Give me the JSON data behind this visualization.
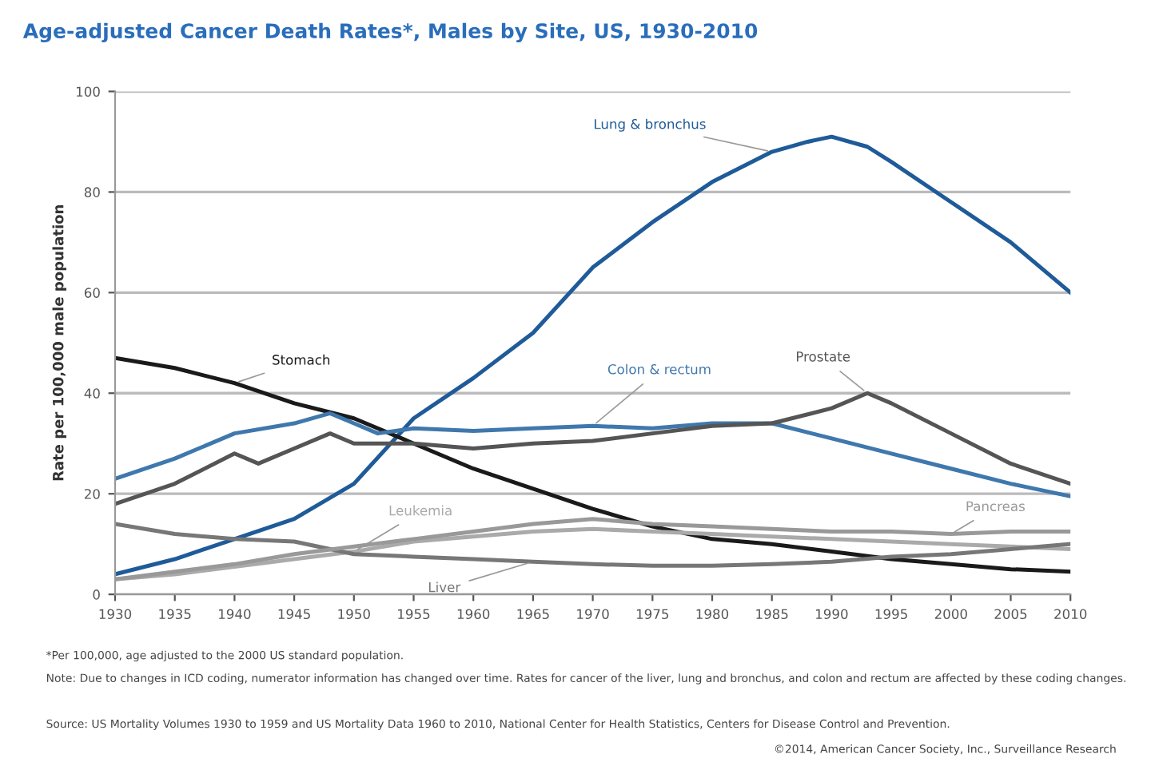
{
  "chart_data": {
    "type": "line",
    "title": "Age-adjusted Cancer Death Rates*, Males by Site, US, 1930-2010",
    "ylabel": "Rate per 100,000 male population",
    "xlim": [
      1930,
      2010
    ],
    "xticks": [
      1930,
      1935,
      1940,
      1945,
      1950,
      1955,
      1960,
      1965,
      1970,
      1975,
      1980,
      1985,
      1990,
      1995,
      2000,
      2005,
      2010
    ],
    "ylim": [
      0,
      100
    ],
    "yticks": [
      0,
      20,
      40,
      60,
      80,
      100
    ],
    "grid": "y",
    "legend": false,
    "marker": "none",
    "line_style": "solid",
    "series": [
      {
        "name": "Lung & bronchus",
        "color": "#1f5b99",
        "x": [
          1930,
          1935,
          1940,
          1945,
          1950,
          1955,
          1960,
          1965,
          1970,
          1975,
          1980,
          1985,
          1988,
          1990,
          1993,
          1995,
          2000,
          2005,
          2010
        ],
        "values": [
          4,
          7,
          11,
          15,
          22,
          35,
          43,
          52,
          65,
          74,
          82,
          88,
          90,
          91,
          89,
          86,
          78,
          70,
          60
        ]
      },
      {
        "name": "Stomach",
        "color": "#1a1a1a",
        "x": [
          1930,
          1935,
          1940,
          1945,
          1950,
          1955,
          1960,
          1965,
          1970,
          1975,
          1980,
          1985,
          1990,
          1995,
          2000,
          2005,
          2010
        ],
        "values": [
          47,
          45,
          42,
          38,
          35,
          30,
          25,
          21,
          17,
          13.5,
          11,
          10,
          8.5,
          7,
          6,
          5,
          4.5
        ]
      },
      {
        "name": "Colon & rectum",
        "color": "#3f78ad",
        "x": [
          1930,
          1935,
          1940,
          1945,
          1948,
          1950,
          1952,
          1955,
          1960,
          1965,
          1970,
          1975,
          1980,
          1985,
          1990,
          1995,
          2000,
          2005,
          2010
        ],
        "values": [
          23,
          27,
          32,
          34,
          36,
          34,
          32,
          33,
          32.5,
          33,
          33.5,
          33,
          34,
          34,
          31,
          28,
          25,
          22,
          19.5
        ]
      },
      {
        "name": "Prostate",
        "color": "#555555",
        "x": [
          1930,
          1935,
          1940,
          1942,
          1945,
          1948,
          1950,
          1955,
          1960,
          1965,
          1970,
          1975,
          1980,
          1985,
          1990,
          1993,
          1995,
          2000,
          2005,
          2010
        ],
        "values": [
          18,
          22,
          28,
          26,
          29,
          32,
          30,
          30,
          29,
          30,
          30.5,
          32,
          33.5,
          34,
          37,
          40,
          38,
          32,
          26,
          22
        ]
      },
      {
        "name": "Leukemia",
        "color": "#aaaaaa",
        "x": [
          1930,
          1935,
          1940,
          1945,
          1950,
          1955,
          1960,
          1965,
          1970,
          1975,
          1980,
          1985,
          1990,
          1995,
          2000,
          2005,
          2010
        ],
        "values": [
          3,
          4,
          5.5,
          7,
          8.5,
          10.5,
          11.5,
          12.5,
          13,
          12.5,
          12,
          11.5,
          11,
          10.5,
          10,
          9.5,
          9
        ]
      },
      {
        "name": "Liver",
        "color": "#777777",
        "x": [
          1930,
          1935,
          1940,
          1945,
          1950,
          1955,
          1960,
          1965,
          1970,
          1975,
          1980,
          1985,
          1990,
          1995,
          2000,
          2005,
          2010
        ],
        "values": [
          14,
          12,
          11,
          10.5,
          8,
          7.5,
          7,
          6.5,
          6,
          5.7,
          5.7,
          6,
          6.5,
          7.5,
          8,
          9,
          10
        ]
      },
      {
        "name": "Pancreas",
        "color": "#999999",
        "x": [
          1930,
          1935,
          1940,
          1945,
          1950,
          1955,
          1960,
          1965,
          1970,
          1975,
          1980,
          1985,
          1990,
          1995,
          2000,
          2005,
          2010
        ],
        "values": [
          3,
          4.5,
          6,
          8,
          9.5,
          11,
          12.5,
          14,
          15,
          14,
          13.5,
          13,
          12.5,
          12.5,
          12,
          12.5,
          12.5
        ]
      }
    ],
    "annotations": [
      "*Per 100,000, age adjusted to the 2000 US standard population.",
      "Note: Due to changes in ICD coding, numerator information has changed over time. Rates for cancer of the liver, lung and bronchus, and colon and rectum are affected by these coding changes.",
      "Source: US Mortality Volumes 1930 to 1959 and US Mortality Data 1960 to 2010, National Center for Health Statistics, Centers for Disease Control and Prevention.",
      "©2014, American Cancer Society, Inc., Surveillance Research"
    ]
  }
}
